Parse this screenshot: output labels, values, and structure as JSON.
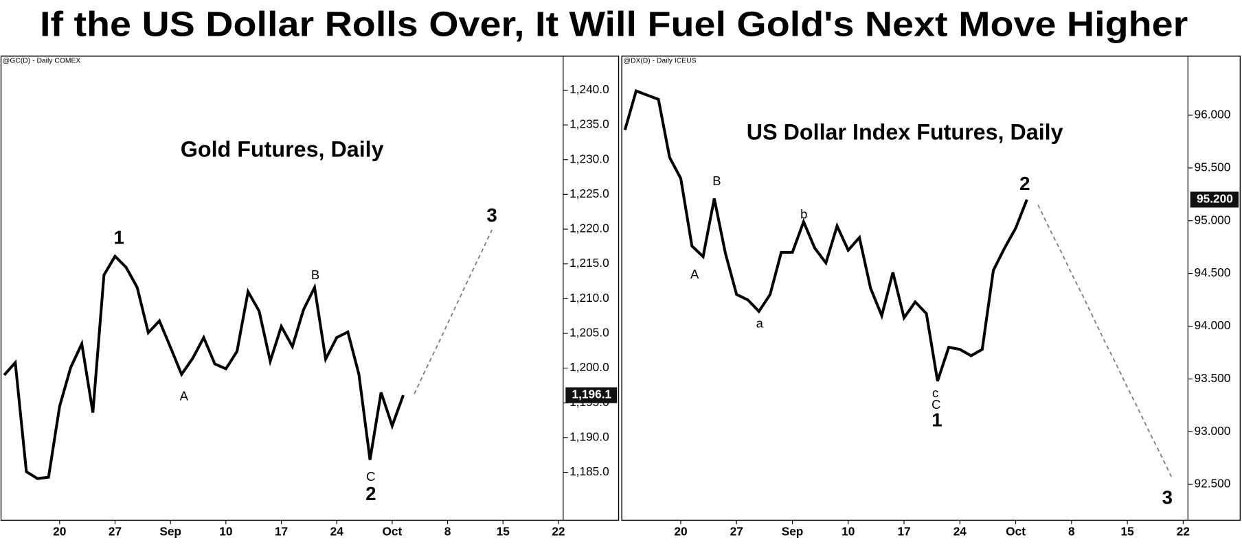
{
  "title": "If the US Dollar Rolls Over, It Will Fuel Gold's Next Move Higher",
  "chart_data": [
    {
      "type": "line",
      "header": "@GC(D) - Daily  COMEX",
      "title": "Gold Futures, Daily",
      "categories": [
        null,
        null,
        null,
        null,
        null,
        "20",
        null,
        null,
        null,
        null,
        "27",
        null,
        null,
        null,
        null,
        "Sep",
        null,
        null,
        null,
        null,
        "10",
        null,
        null,
        null,
        null,
        "17",
        null,
        null,
        null,
        null,
        "24",
        null,
        null,
        null,
        null,
        "Oct",
        null,
        null,
        null,
        null,
        "8",
        null,
        null,
        null,
        null,
        "15",
        null,
        null,
        null,
        null,
        "22"
      ],
      "series": [
        {
          "color": "#000000",
          "dashed": false,
          "values": [
            1199.0,
            1200.8,
            1185.1,
            1184.1,
            1184.3,
            1194.5,
            1200.1,
            1203.5,
            1193.6,
            1213.4,
            1216.1,
            1214.5,
            1211.6,
            1205.1,
            1206.8,
            1203.0,
            1199.1,
            1201.4,
            1204.4,
            1200.6,
            1199.9,
            1202.4,
            1211.0,
            1208.2,
            1201.0,
            1206.0,
            1203.1,
            1208.4,
            1211.6,
            1201.3,
            1204.4,
            1205.2,
            1199.1,
            1186.8,
            1196.5,
            1191.7,
            1196.1,
            null,
            null,
            null,
            null,
            null,
            null,
            null,
            null,
            null,
            null,
            null,
            null,
            null,
            null
          ],
          "value_labels": [
            null,
            null,
            null,
            null,
            null,
            null,
            null,
            null,
            null,
            null,
            null,
            null,
            null,
            null,
            null,
            null,
            null,
            null,
            null,
            null,
            null,
            null,
            null,
            null,
            null,
            null,
            null,
            null,
            null,
            null,
            null,
            null,
            null,
            null,
            null,
            null,
            "1,196.1",
            null,
            null,
            null,
            null,
            null,
            null,
            null,
            null,
            null,
            null,
            null,
            null,
            null,
            null
          ]
        },
        {
          "color": "#808080",
          "dashed": true,
          "values": [
            null,
            null,
            null,
            null,
            null,
            null,
            null,
            null,
            null,
            null,
            null,
            null,
            null,
            null,
            null,
            null,
            null,
            null,
            null,
            null,
            null,
            null,
            null,
            null,
            null,
            null,
            null,
            null,
            null,
            null,
            null,
            null,
            null,
            null,
            null,
            null,
            null,
            1196.3,
            1199.7,
            1203.0,
            1206.4,
            1209.8,
            1213.2,
            1216.5,
            1219.9,
            null,
            null,
            null,
            null,
            null,
            null
          ]
        }
      ],
      "ylim": [
        1178.1,
        1244.9
      ],
      "yticks": [
        {
          "value": 1185,
          "label": "1,185.0"
        },
        {
          "value": 1190,
          "label": "1,190.0"
        },
        {
          "value": 1195,
          "label": "1,195.0"
        },
        {
          "value": 1200,
          "label": "1,200.0"
        },
        {
          "value": 1205,
          "label": "1,205.0"
        },
        {
          "value": 1210,
          "label": "1,210.0"
        },
        {
          "value": 1215,
          "label": "1,215.0"
        },
        {
          "value": 1220,
          "label": "1,220.0"
        },
        {
          "value": 1225,
          "label": "1,225.0"
        },
        {
          "value": 1230,
          "label": "1,230.0"
        },
        {
          "value": 1235,
          "label": "1,235.0"
        },
        {
          "value": 1240,
          "label": "1,240.0"
        }
      ],
      "annotations": [
        {
          "text": "1"
        },
        {
          "text": "A"
        },
        {
          "text": "B"
        },
        {
          "text": "C"
        },
        {
          "text": "2"
        },
        {
          "text": "3"
        }
      ]
    },
    {
      "type": "line",
      "header": "@DX(D) - Daily  ICEUS",
      "title": "US Dollar Index Futures, Daily",
      "categories": [
        null,
        null,
        null,
        null,
        null,
        "20",
        null,
        null,
        null,
        null,
        "27",
        null,
        null,
        null,
        null,
        "Sep",
        null,
        null,
        null,
        null,
        "10",
        null,
        null,
        null,
        null,
        "17",
        null,
        null,
        null,
        null,
        "24",
        null,
        null,
        null,
        null,
        "Oct",
        null,
        null,
        null,
        null,
        "8",
        null,
        null,
        null,
        null,
        "15",
        null,
        null,
        null,
        null,
        "22"
      ],
      "series": [
        {
          "color": "#000000",
          "dashed": false,
          "values": [
            95.86,
            96.23,
            96.19,
            96.15,
            95.6,
            95.4,
            94.76,
            94.66,
            95.21,
            94.69,
            94.3,
            94.25,
            94.14,
            94.3,
            94.7,
            94.7,
            94.99,
            94.74,
            94.6,
            94.95,
            94.72,
            94.84,
            94.36,
            94.1,
            94.51,
            94.08,
            94.23,
            94.12,
            93.48,
            93.8,
            93.78,
            93.72,
            93.78,
            94.53,
            94.74,
            94.93,
            95.2,
            null,
            null,
            null,
            null,
            null,
            null,
            null,
            null,
            null,
            null,
            null,
            null,
            null,
            null
          ],
          "value_labels": [
            null,
            null,
            null,
            null,
            null,
            null,
            null,
            null,
            null,
            null,
            null,
            null,
            null,
            null,
            null,
            null,
            null,
            null,
            null,
            null,
            null,
            null,
            null,
            null,
            null,
            null,
            null,
            null,
            null,
            null,
            null,
            null,
            null,
            null,
            null,
            null,
            "95.200",
            null,
            null,
            null,
            null,
            null,
            null,
            null,
            null,
            null,
            null,
            null,
            null,
            null,
            null
          ]
        },
        {
          "color": "#808080",
          "dashed": true,
          "values": [
            null,
            null,
            null,
            null,
            null,
            null,
            null,
            null,
            null,
            null,
            null,
            null,
            null,
            null,
            null,
            null,
            null,
            null,
            null,
            null,
            null,
            null,
            null,
            null,
            null,
            null,
            null,
            null,
            null,
            null,
            null,
            null,
            null,
            null,
            null,
            null,
            null,
            95.15,
            94.93,
            94.72,
            94.5,
            94.29,
            94.07,
            93.85,
            93.64,
            93.42,
            93.21,
            92.99,
            92.78,
            92.56,
            null
          ]
        }
      ],
      "ylim": [
        92.16,
        96.56
      ],
      "yticks": [
        {
          "value": 92.5,
          "label": "92.500"
        },
        {
          "value": 93,
          "label": "93.000"
        },
        {
          "value": 93.5,
          "label": "93.500"
        },
        {
          "value": 94,
          "label": "94.000"
        },
        {
          "value": 94.5,
          "label": "94.500"
        },
        {
          "value": 95,
          "label": "95.000"
        },
        {
          "value": 95.5,
          "label": "95.500"
        },
        {
          "value": 96,
          "label": "96.000"
        }
      ],
      "annotations": [
        {
          "text": "B"
        },
        {
          "text": "A"
        },
        {
          "text": "a"
        },
        {
          "text": "b"
        },
        {
          "text": "c"
        },
        {
          "text": "C"
        },
        {
          "text": "1"
        },
        {
          "text": "2"
        },
        {
          "text": "3"
        }
      ]
    }
  ]
}
